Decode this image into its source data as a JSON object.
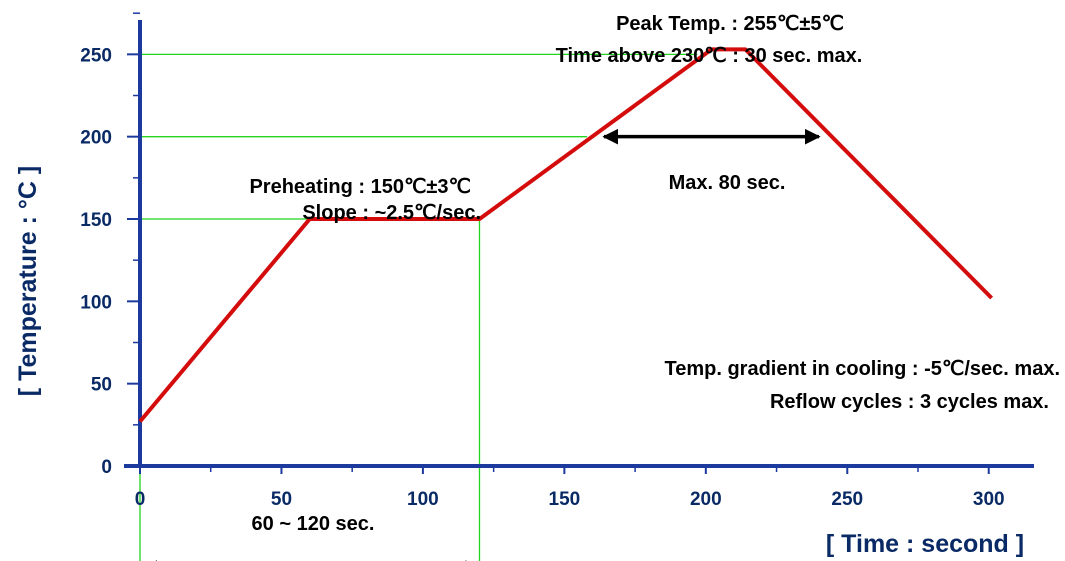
{
  "chart_data": {
    "type": "line",
    "title": "",
    "xlabel": "[ Time : second ]",
    "ylabel": "[ Temperature : °C ]",
    "xlim": [
      0,
      316
    ],
    "ylim": [
      0,
      283
    ],
    "x_ticks": [
      0,
      50,
      100,
      150,
      200,
      250,
      300
    ],
    "y_ticks": [
      0,
      50,
      100,
      150,
      200,
      250
    ],
    "grid": false,
    "series": [
      {
        "name": "",
        "x": [
          0,
          60,
          120,
          202,
          214,
          301
        ],
        "y": [
          27,
          150,
          150,
          253,
          253,
          102
        ]
      }
    ],
    "reference_lines": [
      {
        "orientation": "horizontal",
        "y": 250,
        "x_end": 197
      },
      {
        "orientation": "horizontal",
        "y": 200,
        "x_end": 158
      },
      {
        "orientation": "horizontal",
        "y": 150,
        "x_end": 120
      },
      {
        "orientation": "vertical",
        "x": 0,
        "y_from": -60,
        "y_to": 0
      },
      {
        "orientation": "vertical",
        "x": 120,
        "y_from": -62,
        "y_to": 150
      }
    ],
    "annotations": {
      "peak_temp": "Peak Temp. : 255℃±5℃",
      "time_above": "Time above 230℃ : 30 sec. max.",
      "max_80": "Max. 80 sec.",
      "preheat": "Preheating : 150℃±3℃",
      "slope": "Slope : ~2.5℃/sec.",
      "gradient": "Temp. gradient in cooling : -5℃/sec. max.",
      "reflow": "Reflow cycles : 3 cycles max.",
      "preheat_span": "60 ~ 120 sec."
    },
    "arrows": [
      {
        "name": "max-80-sec-arrow",
        "x_from": 164,
        "x_to": 240,
        "y": 200
      },
      {
        "name": "preheat-span-arrow",
        "x_from": 1,
        "x_to": 120,
        "y": -62
      }
    ]
  }
}
